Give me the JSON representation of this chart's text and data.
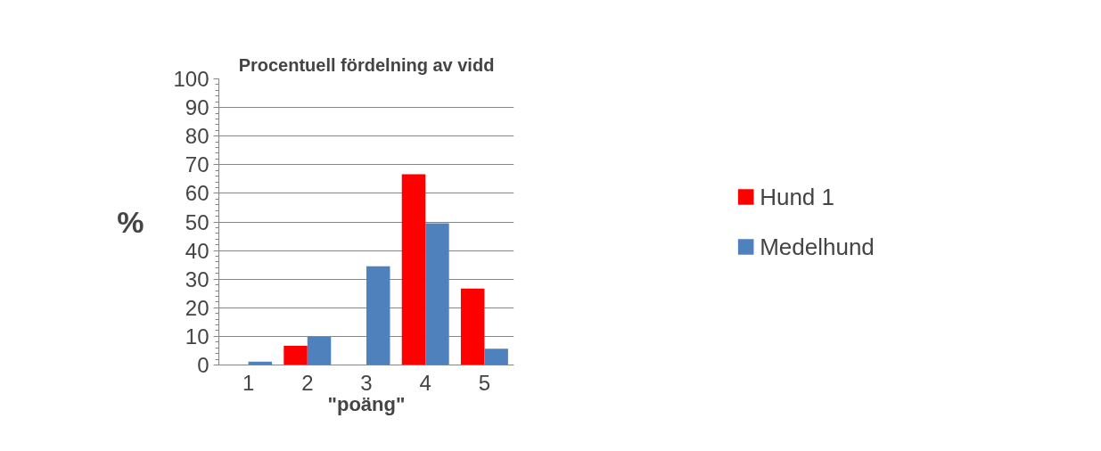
{
  "chart_data": {
    "type": "bar",
    "title": "Procentuell fördelning av vidd",
    "xlabel": "\"poäng\"",
    "ylabel": "%",
    "categories": [
      "1",
      "2",
      "3",
      "4",
      "5"
    ],
    "series": [
      {
        "name": "Hund 1",
        "color": "#ff0000",
        "values": [
          0,
          6.7,
          0,
          66.7,
          26.7
        ]
      },
      {
        "name": "Medelhund",
        "color": "#4f81bd",
        "values": [
          1.2,
          9.8,
          34.5,
          49.5,
          5.7
        ]
      }
    ],
    "ylim": [
      0,
      100
    ],
    "yticks": [
      0,
      10,
      20,
      30,
      40,
      50,
      60,
      70,
      80,
      90,
      100
    ],
    "grid": "y",
    "legend": "right"
  }
}
